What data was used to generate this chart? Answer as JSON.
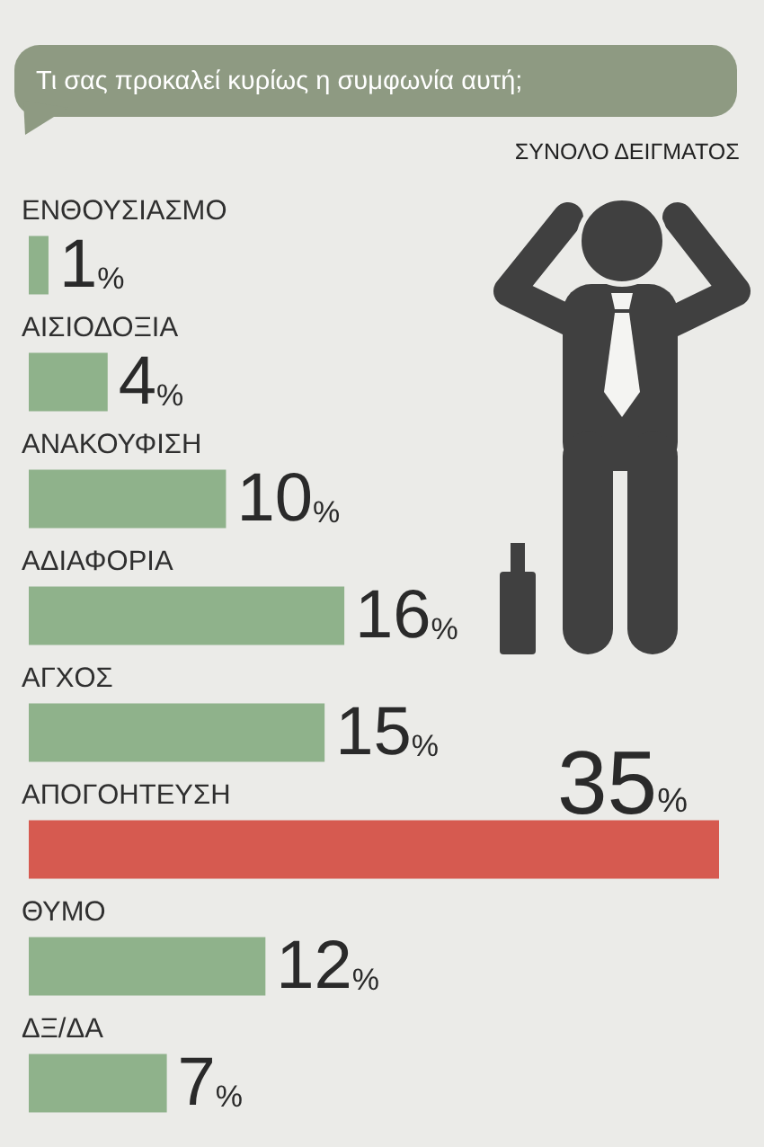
{
  "chart_data": {
    "type": "bar",
    "orientation": "horizontal",
    "title": "Τι σας προκαλεί κυρίως η συμφωνία αυτή;",
    "subtitle": "ΣΥΝΟΛΟ ΔΕΙΓΜΑΤΟΣ",
    "categories": [
      "ΕΝΘΟΥΣΙΑΣΜΟ",
      "ΑΙΣΙΟΔΟΞΙΑ",
      "ΑΝΑΚΟΥΦΙΣΗ",
      "ΑΔΙΑΦΟΡΙΑ",
      "ΑΓΧΟΣ",
      "ΑΠΟΓΟΗΤΕΥΣΗ",
      "ΘΥΜΟ",
      "ΔΞ/ΔΑ"
    ],
    "values": [
      1,
      4,
      10,
      16,
      15,
      35,
      12,
      7
    ],
    "colors": [
      "#8fb28b",
      "#8fb28b",
      "#8fb28b",
      "#8fb28b",
      "#8fb28b",
      "#d65a50",
      "#8fb28b",
      "#8fb28b"
    ],
    "value_labels": [
      "1%",
      "4%",
      "10%",
      "16%",
      "15%",
      "35%",
      "12%",
      "7%"
    ],
    "tick_labels": "y"
  }
}
